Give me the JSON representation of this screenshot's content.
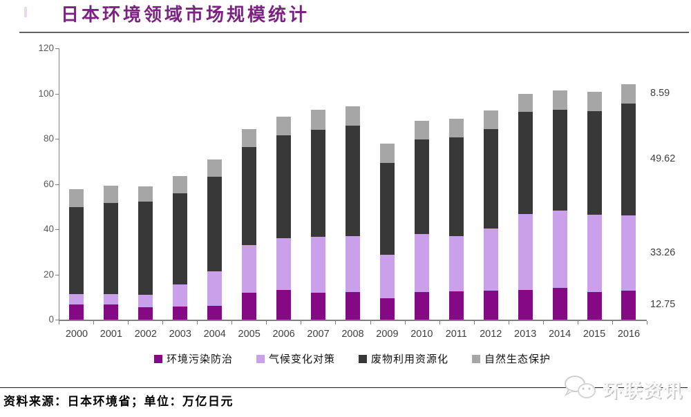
{
  "header": {
    "title": "日本环境领域市场规模统计"
  },
  "chart_data": {
    "type": "bar",
    "stacked": true,
    "title": "日本环境领域市场规模统计",
    "xlabel": "",
    "ylabel": "",
    "unit": "万亿日元",
    "ylim": [
      0,
      120
    ],
    "yticks": [
      0,
      20,
      40,
      60,
      80,
      100,
      120
    ],
    "grid": false,
    "legend_position": "bottom",
    "categories": [
      "2000",
      "2001",
      "2002",
      "2003",
      "2004",
      "2005",
      "2006",
      "2007",
      "2008",
      "2009",
      "2010",
      "2011",
      "2012",
      "2013",
      "2014",
      "2015",
      "2016"
    ],
    "series": [
      {
        "name": "环境污染防治",
        "color": "#850885",
        "values": [
          6.6,
          6.6,
          5.6,
          5.8,
          6.0,
          11.8,
          13.0,
          12.0,
          12.2,
          9.5,
          12.2,
          12.4,
          12.7,
          13.2,
          14.0,
          12.3,
          12.75
        ]
      },
      {
        "name": "气候变化对策",
        "color": "#c9a0e9",
        "values": [
          4.6,
          4.6,
          5.5,
          9.9,
          15.3,
          21.1,
          23.0,
          24.6,
          24.8,
          19.1,
          25.6,
          24.6,
          27.5,
          33.4,
          34.1,
          34.1,
          33.26
        ]
      },
      {
        "name": "废物利用资源化",
        "color": "#383838",
        "values": [
          38.6,
          40.4,
          41.0,
          40.2,
          42.0,
          43.3,
          45.5,
          47.3,
          48.8,
          40.6,
          41.9,
          43.5,
          44.1,
          45.4,
          44.8,
          45.9,
          49.62
        ]
      },
      {
        "name": "自然生态保护",
        "color": "#a6a6a6",
        "values": [
          7.9,
          7.6,
          6.9,
          7.6,
          7.6,
          8.1,
          8.2,
          8.9,
          8.7,
          8.8,
          8.4,
          8.3,
          8.1,
          7.9,
          8.5,
          8.4,
          8.59
        ]
      }
    ],
    "end_value_labels": [
      "12.75",
      "33.26",
      "49.62",
      "8.59"
    ]
  },
  "footer": {
    "source_text": "资料来源：日本环境省；单位：万亿日元"
  },
  "watermark": {
    "text": "环联资讯"
  }
}
